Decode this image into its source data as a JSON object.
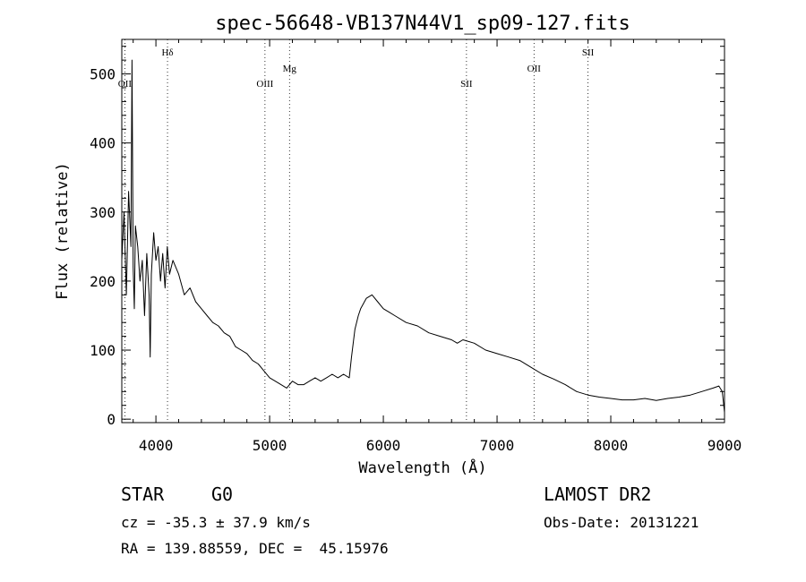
{
  "chart_data": {
    "type": "line",
    "title": "spec-56648-VB137N44V1_sp09-127.fits",
    "xlabel": "Wavelength (Å)",
    "ylabel": "Flux (relative)",
    "xlim": [
      3700,
      9000
    ],
    "ylim": [
      -5,
      550
    ],
    "xticks": [
      4000,
      5000,
      6000,
      7000,
      8000,
      9000
    ],
    "yticks": [
      0,
      100,
      200,
      300,
      400,
      500
    ],
    "grid": false,
    "series": [
      {
        "x": [
          3700,
          3720,
          3740,
          3760,
          3780,
          3790,
          3800,
          3810,
          3820,
          3840,
          3860,
          3880,
          3900,
          3920,
          3940,
          3950,
          3960,
          3980,
          4000,
          4020,
          4040,
          4060,
          4080,
          4100,
          4120,
          4150,
          4200,
          4250,
          4300,
          4350,
          4400,
          4450,
          4500,
          4550,
          4600,
          4650,
          4700,
          4750,
          4800,
          4850,
          4900,
          4950,
          5000,
          5050,
          5100,
          5150,
          5200,
          5250,
          5300,
          5350,
          5400,
          5450,
          5500,
          5550,
          5600,
          5650,
          5700,
          5720,
          5750,
          5780,
          5800,
          5850,
          5900,
          5950,
          6000,
          6050,
          6100,
          6200,
          6300,
          6400,
          6500,
          6600,
          6650,
          6700,
          6800,
          6900,
          7000,
          7100,
          7200,
          7300,
          7400,
          7500,
          7600,
          7700,
          7800,
          7900,
          8000,
          8100,
          8200,
          8300,
          8400,
          8500,
          8600,
          8700,
          8800,
          8900,
          8950,
          8980,
          9000
        ],
        "y": [
          230,
          300,
          180,
          330,
          250,
          520,
          220,
          160,
          280,
          250,
          200,
          230,
          150,
          240,
          180,
          90,
          210,
          270,
          230,
          250,
          200,
          240,
          190,
          250,
          210,
          230,
          210,
          180,
          190,
          170,
          160,
          150,
          140,
          135,
          125,
          120,
          105,
          100,
          95,
          85,
          80,
          70,
          60,
          55,
          50,
          45,
          55,
          50,
          50,
          55,
          60,
          55,
          60,
          65,
          60,
          65,
          60,
          90,
          130,
          150,
          160,
          175,
          180,
          170,
          160,
          155,
          150,
          140,
          135,
          125,
          120,
          115,
          110,
          115,
          110,
          100,
          95,
          90,
          85,
          75,
          65,
          58,
          50,
          40,
          35,
          32,
          30,
          28,
          28,
          30,
          27,
          30,
          32,
          35,
          40,
          45,
          48,
          40,
          10
        ]
      }
    ],
    "lines": [
      {
        "label": "OII",
        "x": 3727,
        "label_row": "low"
      },
      {
        "label": "Hδ",
        "x": 4102,
        "label_row": "top"
      },
      {
        "label": "OIII",
        "x": 4959,
        "label_row": "low"
      },
      {
        "label": "Mg",
        "x": 5175,
        "label_row": "mid"
      },
      {
        "label": "SII",
        "x": 6731,
        "label_row": "low"
      },
      {
        "label": "OII",
        "x": 7325,
        "label_row": "mid"
      },
      {
        "label": "SII",
        "x": 7800,
        "label_row": "top"
      }
    ]
  },
  "footer": {
    "object_type": "STAR",
    "subclass": "G0",
    "cz": "cz = -35.3 ± 37.9 km/s",
    "coords": "RA = 139.88559, DEC =  45.15976",
    "survey": "LAMOST DR2",
    "obs_date": "Obs-Date: 20131221"
  }
}
